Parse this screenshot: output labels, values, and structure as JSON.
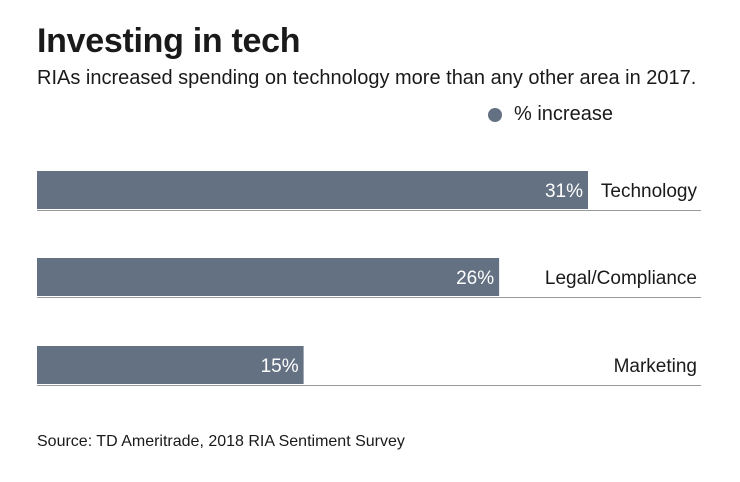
{
  "chart_data": {
    "type": "bar",
    "orientation": "horizontal",
    "title": "Investing in tech",
    "subtitle": "RIAs increased spending on technology more than any other area in 2017.",
    "categories": [
      "Technology",
      "Legal/Compliance",
      "Marketing"
    ],
    "series": [
      {
        "name": "% increase",
        "values": [
          31,
          26,
          15
        ]
      }
    ],
    "value_labels": [
      "31%",
      "26%",
      "15%"
    ],
    "xlim": [
      0,
      31
    ],
    "legend": "top-right",
    "source": "Source: TD Ameritrade, 2018 RIA Sentiment Survey"
  },
  "colors": {
    "bar": "#637183",
    "label_on_bar": "#ffffff",
    "baseline": "#9a9a9a"
  }
}
